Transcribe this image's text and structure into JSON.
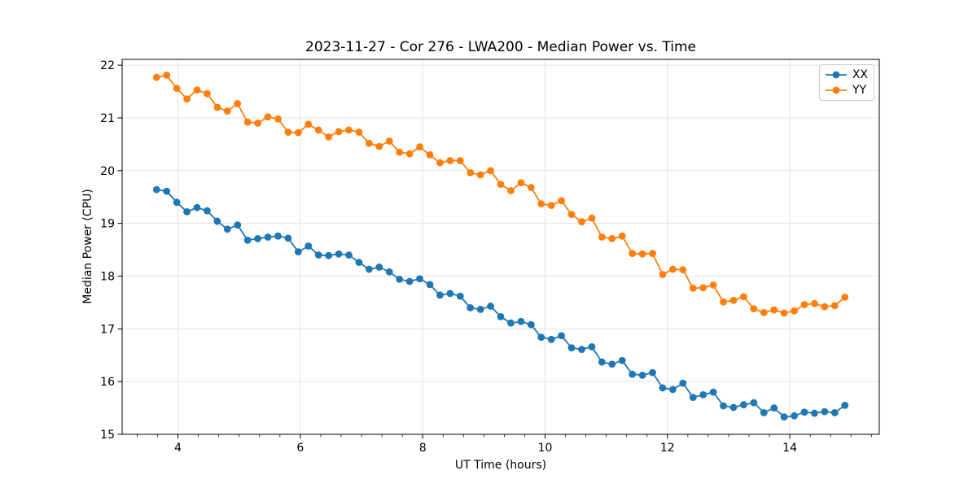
{
  "chart_data": {
    "type": "line",
    "title": "2023-11-27 - Cor 276 - LWA200 - Median Power vs. Time",
    "xlabel": "UT Time (hours)",
    "ylabel": "Median Power (CPU)",
    "xlim": [
      3.0875,
      15.4625
    ],
    "ylim": [
      15.0,
      22.11
    ],
    "x_ticks": [
      4,
      6,
      8,
      10,
      12,
      14
    ],
    "y_ticks": [
      15,
      16,
      17,
      18,
      19,
      20,
      21,
      22
    ],
    "x_minor_tick_step": 0.3333,
    "grid": true,
    "legend_position": "upper right",
    "background_color": "#ffffff",
    "grid_color": "#e3e3e3",
    "axis_color": "#000000",
    "n_points": 69,
    "x_start": 3.65,
    "x_end": 14.9,
    "x_spacing": "uniform (~10 min cadence)",
    "series": [
      {
        "name": "XX",
        "color": "#1f77b4",
        "values": [
          19.64,
          19.61,
          19.4,
          19.22,
          19.3,
          19.24,
          19.04,
          18.89,
          18.97,
          18.68,
          18.71,
          18.74,
          18.76,
          18.72,
          18.46,
          18.57,
          18.4,
          18.39,
          18.42,
          18.4,
          18.26,
          18.13,
          18.17,
          18.08,
          17.94,
          17.9,
          17.95,
          17.84,
          17.64,
          17.67,
          17.62,
          17.4,
          17.37,
          17.43,
          17.23,
          17.11,
          17.14,
          17.08,
          16.84,
          16.8,
          16.87,
          16.64,
          16.61,
          16.66,
          16.37,
          16.33,
          16.4,
          16.14,
          16.12,
          16.17,
          15.88,
          15.85,
          15.97,
          15.7,
          15.75,
          15.8,
          15.54,
          15.51,
          15.56,
          15.6,
          15.41,
          15.5,
          15.33,
          15.35,
          15.42,
          15.4,
          15.43,
          15.41,
          15.55
        ]
      },
      {
        "name": "YY",
        "color": "#ff7f0e",
        "values": [
          21.77,
          21.81,
          21.56,
          21.36,
          21.53,
          21.46,
          21.2,
          21.13,
          21.27,
          20.92,
          20.9,
          21.02,
          20.98,
          20.73,
          20.72,
          20.88,
          20.77,
          20.64,
          20.74,
          20.77,
          20.73,
          20.52,
          20.46,
          20.56,
          20.35,
          20.32,
          20.45,
          20.3,
          20.15,
          20.19,
          20.19,
          19.96,
          19.92,
          20.0,
          19.74,
          19.62,
          19.77,
          19.68,
          19.37,
          19.34,
          19.43,
          19.17,
          19.03,
          19.1,
          18.74,
          18.71,
          18.76,
          18.43,
          18.42,
          18.43,
          18.03,
          18.13,
          18.12,
          17.77,
          17.78,
          17.83,
          17.51,
          17.54,
          17.61,
          17.38,
          17.31,
          17.36,
          17.3,
          17.34,
          17.46,
          17.48,
          17.42,
          17.44,
          17.6
        ]
      }
    ]
  }
}
